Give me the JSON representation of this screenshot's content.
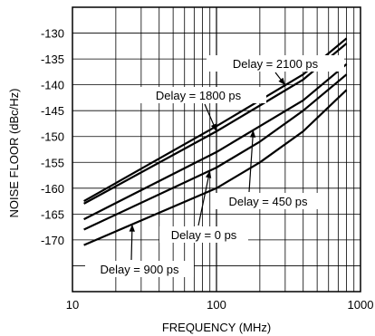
{
  "chart_data": {
    "type": "line",
    "title": "",
    "xlabel": "FREQUENCY (MHz)",
    "ylabel": "NOISE FLOOR (dBc/Hz)",
    "x_scale": "log",
    "xlim": [
      10,
      1000
    ],
    "ylim": [
      -180,
      -125
    ],
    "grid": true,
    "x_ticks": [
      "10",
      "100",
      "1000"
    ],
    "y_ticks": [
      "-130",
      "-135",
      "-140",
      "-145",
      "-150",
      "-155",
      "-160",
      "-165",
      "-170"
    ],
    "series": [
      {
        "name": "Delay = 2100 ps",
        "x": [
          12,
          100,
          200,
          400,
          800
        ],
        "y": [
          -162.5,
          -148.0,
          -143.0,
          -138.0,
          -131.0
        ]
      },
      {
        "name": "Delay = 1800 ps",
        "x": [
          12,
          100,
          200,
          400,
          800
        ],
        "y": [
          -163.0,
          -149.0,
          -144.0,
          -139.0,
          -132.0
        ]
      },
      {
        "name": "Delay = 450 ps",
        "x": [
          12,
          100,
          200,
          400,
          800
        ],
        "y": [
          -166.0,
          -153.0,
          -148.0,
          -143.0,
          -136.0
        ]
      },
      {
        "name": "Delay = 0 ps",
        "x": [
          12,
          100,
          200,
          400,
          800
        ],
        "y": [
          -168.0,
          -156.0,
          -151.0,
          -145.0,
          -138.0
        ]
      },
      {
        "name": "Delay = 900 ps",
        "x": [
          12,
          100,
          200,
          400,
          800
        ],
        "y": [
          -171.0,
          -160.0,
          -155.0,
          -149.0,
          -141.0
        ]
      }
    ],
    "annotations": [
      {
        "text": "Delay = 2100 ps",
        "series": 0
      },
      {
        "text": "Delay = 1800 ps",
        "series": 1
      },
      {
        "text": "Delay = 450 ps",
        "series": 2
      },
      {
        "text": "Delay = 0 ps",
        "series": 3
      },
      {
        "text": "Delay = 900 ps",
        "series": 4
      }
    ]
  }
}
